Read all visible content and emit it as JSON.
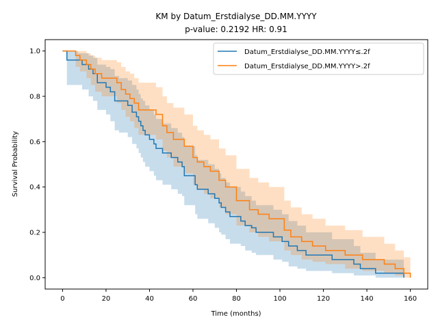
{
  "chart_data": {
    "type": "line",
    "title": "KM by Datum_Erstdialyse_DD.MM.YYYY",
    "subtitle": "p-value: 0.2192  HR: 0.91",
    "xlabel": "Time (months)",
    "ylabel": "Survival Probability",
    "xlim": [
      -8,
      168
    ],
    "ylim": [
      -0.05,
      1.05
    ],
    "xticks": [
      0,
      20,
      40,
      60,
      80,
      100,
      120,
      140,
      160
    ],
    "yticks": [
      0.0,
      0.2,
      0.4,
      0.6,
      0.8,
      1.0
    ],
    "grid": false,
    "legend_position": "top-right",
    "series": [
      {
        "name": "Datum_Erstdialyse_DD.MM.YYYY≤.2f",
        "color": "#1f77b4",
        "band_color": "#1f77b4",
        "step": true,
        "x": [
          0,
          2,
          7,
          9,
          12,
          14,
          16,
          20,
          22,
          24,
          26,
          30,
          32,
          34,
          35,
          36,
          37,
          38,
          40,
          42,
          43,
          46,
          48,
          50,
          51,
          53,
          55,
          56,
          59,
          61,
          62,
          67,
          70,
          72,
          73,
          75,
          77,
          82,
          84,
          87,
          89,
          97,
          101,
          104,
          108,
          112,
          124,
          134,
          137,
          144,
          157
        ],
        "y": [
          1.0,
          0.96,
          0.96,
          0.94,
          0.92,
          0.9,
          0.86,
          0.84,
          0.82,
          0.78,
          0.78,
          0.76,
          0.73,
          0.71,
          0.69,
          0.67,
          0.65,
          0.63,
          0.61,
          0.59,
          0.57,
          0.55,
          0.55,
          0.53,
          0.53,
          0.51,
          0.49,
          0.45,
          0.45,
          0.41,
          0.39,
          0.37,
          0.35,
          0.33,
          0.31,
          0.29,
          0.27,
          0.25,
          0.23,
          0.22,
          0.2,
          0.18,
          0.16,
          0.14,
          0.12,
          0.1,
          0.08,
          0.06,
          0.04,
          0.02,
          0.0
        ],
        "upper": [
          1.0,
          1.0,
          0.99,
          0.99,
          0.98,
          0.97,
          0.94,
          0.93,
          0.92,
          0.89,
          0.88,
          0.87,
          0.85,
          0.83,
          0.81,
          0.79,
          0.78,
          0.76,
          0.74,
          0.72,
          0.7,
          0.68,
          0.68,
          0.66,
          0.66,
          0.64,
          0.62,
          0.58,
          0.58,
          0.54,
          0.52,
          0.5,
          0.48,
          0.46,
          0.44,
          0.42,
          0.4,
          0.38,
          0.36,
          0.34,
          0.32,
          0.3,
          0.28,
          0.25,
          0.23,
          0.2,
          0.17,
          0.14,
          0.11,
          0.08,
          0.0
        ],
        "lower": [
          1.0,
          0.85,
          0.85,
          0.83,
          0.8,
          0.78,
          0.74,
          0.72,
          0.69,
          0.65,
          0.64,
          0.62,
          0.59,
          0.57,
          0.55,
          0.53,
          0.51,
          0.49,
          0.47,
          0.45,
          0.43,
          0.41,
          0.41,
          0.39,
          0.39,
          0.37,
          0.36,
          0.32,
          0.32,
          0.28,
          0.26,
          0.24,
          0.22,
          0.2,
          0.19,
          0.17,
          0.15,
          0.14,
          0.12,
          0.11,
          0.1,
          0.08,
          0.07,
          0.05,
          0.04,
          0.03,
          0.02,
          0.01,
          0.01,
          0.0,
          0.0
        ]
      },
      {
        "name": "Datum_Erstdialyse_DD.MM.YYYY>.2f",
        "color": "#ff7f0e",
        "band_color": "#ff7f0e",
        "step": true,
        "x": [
          0,
          6,
          8,
          11,
          13,
          15,
          18,
          25,
          27,
          29,
          31,
          33,
          35,
          43,
          46,
          48,
          51,
          56,
          60,
          62,
          65,
          68,
          72,
          75,
          80,
          86,
          90,
          95,
          102,
          105,
          110,
          115,
          121,
          130,
          138,
          148,
          153,
          157,
          160
        ],
        "y": [
          1.0,
          0.98,
          0.96,
          0.94,
          0.92,
          0.9,
          0.88,
          0.86,
          0.83,
          0.81,
          0.79,
          0.77,
          0.74,
          0.72,
          0.67,
          0.64,
          0.61,
          0.58,
          0.53,
          0.51,
          0.49,
          0.47,
          0.43,
          0.4,
          0.34,
          0.3,
          0.28,
          0.26,
          0.21,
          0.18,
          0.16,
          0.14,
          0.12,
          0.1,
          0.08,
          0.06,
          0.04,
          0.02,
          0.0
        ],
        "upper": [
          1.0,
          1.0,
          1.0,
          0.99,
          0.98,
          0.97,
          0.96,
          0.95,
          0.93,
          0.91,
          0.9,
          0.88,
          0.86,
          0.84,
          0.8,
          0.77,
          0.75,
          0.72,
          0.67,
          0.65,
          0.63,
          0.61,
          0.57,
          0.54,
          0.48,
          0.44,
          0.42,
          0.4,
          0.34,
          0.31,
          0.28,
          0.26,
          0.23,
          0.21,
          0.18,
          0.15,
          0.12,
          0.09,
          0.0
        ],
        "lower": [
          1.0,
          0.93,
          0.91,
          0.88,
          0.85,
          0.82,
          0.8,
          0.77,
          0.74,
          0.71,
          0.69,
          0.66,
          0.63,
          0.61,
          0.56,
          0.53,
          0.49,
          0.46,
          0.41,
          0.39,
          0.37,
          0.35,
          0.31,
          0.28,
          0.23,
          0.2,
          0.18,
          0.16,
          0.12,
          0.1,
          0.08,
          0.07,
          0.06,
          0.04,
          0.03,
          0.02,
          0.01,
          0.0,
          0.0
        ]
      }
    ]
  }
}
